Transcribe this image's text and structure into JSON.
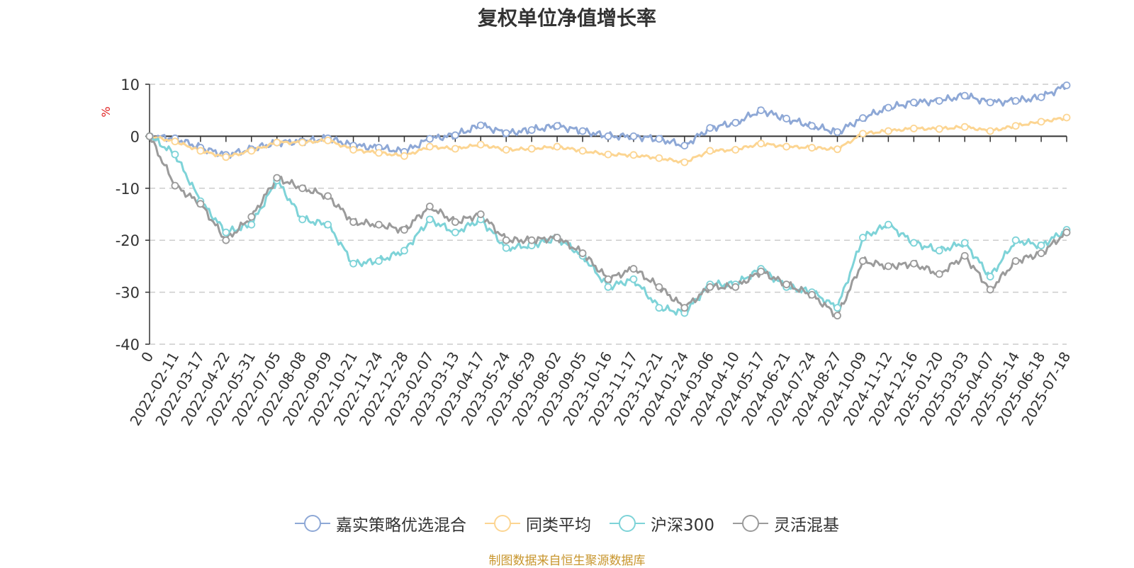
{
  "title": "复权单位净值增长率",
  "source_note": "制图数据来自恒生聚源数据库",
  "colors": {
    "嘉实策略优选混合": "#8ea8d6",
    "同类平均": "#fcd592",
    "沪深300": "#7ed3d8",
    "灵活混基": "#9b9b9b",
    "axis_unit": "#e02020"
  },
  "chart_data": {
    "type": "line",
    "title": "复权单位净值增长率",
    "ylabel": "%",
    "xlabel": "",
    "ylim": [
      -40,
      10
    ],
    "yticks": [
      10,
      0,
      -10,
      -20,
      -30,
      -40
    ],
    "grid": true,
    "legend_position": "bottom",
    "x": [
      "0",
      "2022-02-11",
      "2022-03-17",
      "2022-04-22",
      "2022-05-31",
      "2022-07-05",
      "2022-08-08",
      "2022-09-09",
      "2022-10-21",
      "2022-11-24",
      "2022-12-28",
      "2023-02-07",
      "2023-03-13",
      "2023-04-17",
      "2023-05-24",
      "2023-06-29",
      "2023-08-02",
      "2023-09-05",
      "2023-10-16",
      "2023-11-17",
      "2023-12-21",
      "2024-01-24",
      "2024-03-06",
      "2024-04-10",
      "2024-05-17",
      "2024-06-21",
      "2024-07-24",
      "2024-08-27",
      "2024-10-09",
      "2024-11-12",
      "2024-12-16",
      "2025-01-20",
      "2025-03-03",
      "2025-04-07",
      "2025-05-14",
      "2025-06-18",
      "2025-07-18"
    ],
    "series": [
      {
        "name": "嘉实策略优选混合",
        "values": [
          0,
          -0.4,
          -2.2,
          -3.6,
          -2.5,
          -1.2,
          -1.0,
          -0.4,
          -1.8,
          -2.2,
          -3.0,
          -0.5,
          0.2,
          2.1,
          0.6,
          1.2,
          2.0,
          1.0,
          0,
          0,
          -0.5,
          -1.8,
          1.6,
          2.6,
          5.0,
          3.4,
          2.0,
          0.8,
          3.5,
          5.5,
          6.5,
          6.8,
          7.8,
          6.5,
          6.8,
          7.5,
          9.8
        ]
      },
      {
        "name": "同类平均",
        "values": [
          0,
          -1.0,
          -2.8,
          -4.0,
          -2.8,
          -1.2,
          -1.2,
          -0.8,
          -2.6,
          -3.2,
          -3.8,
          -2.0,
          -2.4,
          -1.6,
          -2.6,
          -2.4,
          -2.0,
          -2.8,
          -3.5,
          -3.6,
          -4.2,
          -5.0,
          -2.8,
          -2.6,
          -1.4,
          -2.0,
          -2.2,
          -2.5,
          0.5,
          1.0,
          1.5,
          1.4,
          1.8,
          1.0,
          2.0,
          2.8,
          3.6
        ]
      },
      {
        "name": "沪深300",
        "values": [
          0,
          -3.5,
          -12.5,
          -18.5,
          -17.0,
          -8.5,
          -16.0,
          -17.0,
          -24.5,
          -24.0,
          -22.0,
          -16.0,
          -18.5,
          -16.0,
          -21.5,
          -21.0,
          -19.5,
          -23.0,
          -29.0,
          -27.5,
          -33.0,
          -34.0,
          -28.5,
          -28.5,
          -25.5,
          -29.0,
          -30.0,
          -33.0,
          -19.5,
          -17.0,
          -20.5,
          -22.0,
          -20.5,
          -27.0,
          -20.0,
          -21.0,
          -18.0
        ]
      },
      {
        "name": "灵活混基",
        "values": [
          0,
          -9.5,
          -13.0,
          -20.0,
          -15.5,
          -8.0,
          -10.0,
          -11.5,
          -16.5,
          -17.0,
          -18.0,
          -13.5,
          -16.5,
          -15.0,
          -20.0,
          -20.0,
          -19.5,
          -22.5,
          -27.5,
          -25.5,
          -29.0,
          -33.0,
          -29.0,
          -29.0,
          -26.0,
          -28.5,
          -30.5,
          -34.5,
          -24.0,
          -25.0,
          -24.5,
          -26.5,
          -23.0,
          -29.5,
          -24.0,
          -22.5,
          -18.5
        ]
      }
    ]
  }
}
